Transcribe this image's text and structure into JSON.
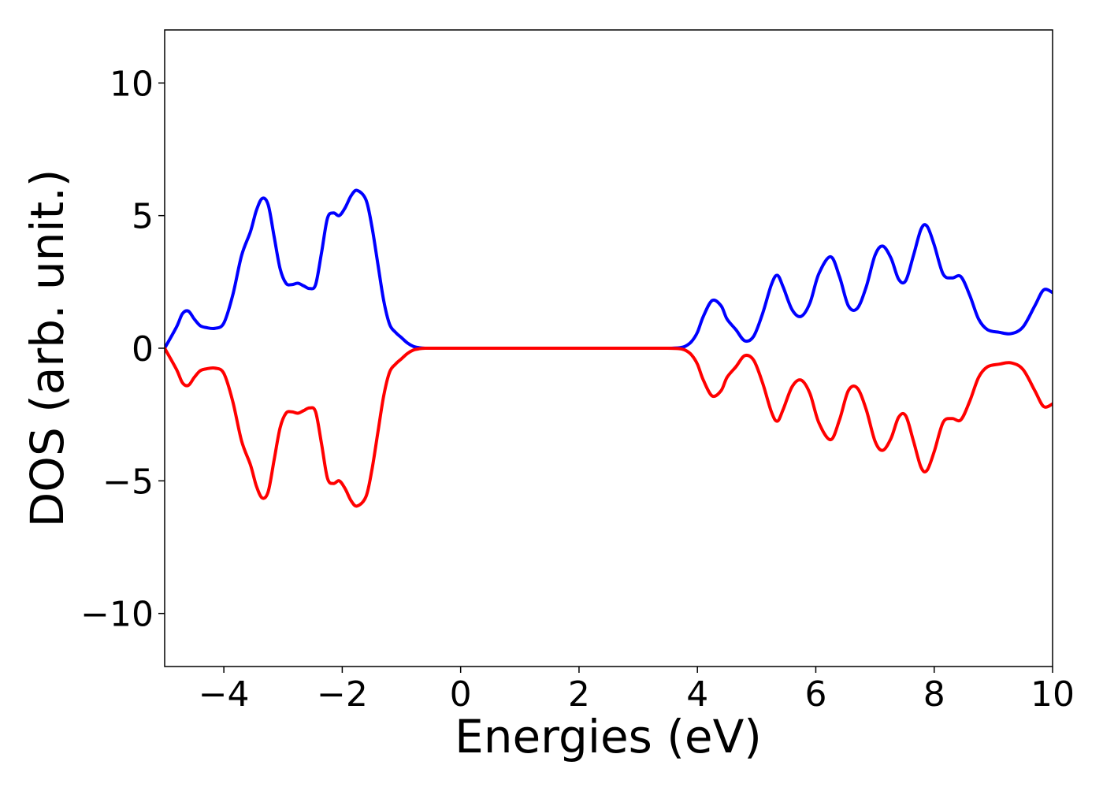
{
  "chart_data": {
    "type": "line",
    "title": "",
    "xlabel": "Energies (eV)",
    "ylabel": "DOS (arb. unit.)",
    "xlim": [
      -5,
      10
    ],
    "ylim": [
      -12,
      12
    ],
    "xticks": [
      -4,
      -2,
      0,
      2,
      4,
      6,
      8,
      10
    ],
    "xtick_labels": [
      "−4",
      "−2",
      "0",
      "2",
      "4",
      "6",
      "8",
      "10"
    ],
    "yticks": [
      -10,
      -5,
      0,
      5,
      10
    ],
    "ytick_labels": [
      "−10",
      "−5",
      "0",
      "5",
      "10"
    ],
    "grid": false,
    "legend": "none",
    "series": [
      {
        "color": "#0000ff",
        "x": [
          -5.0,
          -4.8,
          -4.7,
          -4.6,
          -4.5,
          -4.4,
          -4.3,
          -4.15,
          -4.0,
          -3.85,
          -3.7,
          -3.55,
          -3.45,
          -3.35,
          -3.25,
          -3.15,
          -3.05,
          -2.95,
          -2.85,
          -2.75,
          -2.65,
          -2.55,
          -2.45,
          -2.35,
          -2.25,
          -2.15,
          -2.05,
          -1.95,
          -1.85,
          -1.75,
          -1.6,
          -1.5,
          -1.4,
          -1.3,
          -1.2,
          -1.1,
          -1.0,
          -0.9,
          -0.8,
          -0.7,
          -0.6,
          -0.5,
          -0.3,
          0.0,
          1.0,
          2.0,
          3.0,
          3.5,
          3.7,
          3.8,
          3.9,
          4.0,
          4.1,
          4.25,
          4.4,
          4.5,
          4.65,
          4.8,
          4.95,
          5.1,
          5.25,
          5.35,
          5.45,
          5.6,
          5.75,
          5.9,
          6.05,
          6.25,
          6.4,
          6.55,
          6.7,
          6.85,
          7.0,
          7.13,
          7.27,
          7.4,
          7.52,
          7.65,
          7.78,
          7.88,
          8.0,
          8.15,
          8.3,
          8.45,
          8.6,
          8.75,
          8.9,
          9.1,
          9.3,
          9.5,
          9.7,
          9.85,
          10.0
        ],
        "y": [
          0.0,
          0.8,
          1.3,
          1.4,
          1.1,
          0.85,
          0.78,
          0.75,
          0.95,
          2.0,
          3.5,
          4.4,
          5.2,
          5.65,
          5.4,
          4.2,
          3.0,
          2.45,
          2.4,
          2.45,
          2.35,
          2.25,
          2.4,
          3.6,
          4.9,
          5.1,
          5.0,
          5.3,
          5.75,
          5.95,
          5.6,
          4.6,
          3.2,
          1.8,
          0.9,
          0.6,
          0.4,
          0.2,
          0.07,
          0.02,
          0.0,
          0.0,
          0.0,
          0.0,
          0.0,
          0.0,
          0.0,
          0.0,
          0.02,
          0.08,
          0.25,
          0.6,
          1.2,
          1.8,
          1.6,
          1.1,
          0.7,
          0.28,
          0.45,
          1.3,
          2.4,
          2.75,
          2.3,
          1.45,
          1.2,
          1.7,
          2.8,
          3.45,
          2.7,
          1.6,
          1.5,
          2.3,
          3.5,
          3.85,
          3.4,
          2.6,
          2.55,
          3.5,
          4.5,
          4.6,
          3.9,
          2.8,
          2.65,
          2.7,
          2.0,
          1.1,
          0.7,
          0.6,
          0.55,
          0.8,
          1.6,
          2.2,
          2.1
        ]
      },
      {
        "color": "#ff0000",
        "x": [
          -5.0,
          -4.8,
          -4.7,
          -4.6,
          -4.5,
          -4.4,
          -4.3,
          -4.15,
          -4.0,
          -3.85,
          -3.7,
          -3.55,
          -3.45,
          -3.35,
          -3.25,
          -3.15,
          -3.05,
          -2.95,
          -2.85,
          -2.75,
          -2.65,
          -2.55,
          -2.45,
          -2.35,
          -2.25,
          -2.15,
          -2.05,
          -1.95,
          -1.85,
          -1.75,
          -1.6,
          -1.5,
          -1.4,
          -1.3,
          -1.2,
          -1.1,
          -1.0,
          -0.9,
          -0.8,
          -0.7,
          -0.6,
          -0.5,
          -0.3,
          0.0,
          1.0,
          2.0,
          3.0,
          3.5,
          3.7,
          3.8,
          3.9,
          4.0,
          4.1,
          4.25,
          4.4,
          4.5,
          4.65,
          4.8,
          4.95,
          5.1,
          5.25,
          5.35,
          5.45,
          5.6,
          5.75,
          5.9,
          6.05,
          6.25,
          6.4,
          6.55,
          6.7,
          6.85,
          7.0,
          7.13,
          7.27,
          7.4,
          7.52,
          7.65,
          7.78,
          7.88,
          8.0,
          8.15,
          8.3,
          8.45,
          8.6,
          8.75,
          8.9,
          9.1,
          9.3,
          9.5,
          9.7,
          9.85,
          10.0
        ],
        "y": [
          0.0,
          -0.8,
          -1.3,
          -1.4,
          -1.1,
          -0.85,
          -0.78,
          -0.75,
          -0.95,
          -2.0,
          -3.5,
          -4.4,
          -5.2,
          -5.65,
          -5.4,
          -4.2,
          -3.0,
          -2.45,
          -2.4,
          -2.45,
          -2.35,
          -2.25,
          -2.4,
          -3.6,
          -4.9,
          -5.1,
          -5.0,
          -5.3,
          -5.75,
          -5.95,
          -5.6,
          -4.6,
          -3.2,
          -1.8,
          -0.9,
          -0.6,
          -0.4,
          -0.2,
          -0.07,
          -0.02,
          0.0,
          0.0,
          0.0,
          0.0,
          0.0,
          0.0,
          0.0,
          0.0,
          -0.02,
          -0.08,
          -0.25,
          -0.6,
          -1.2,
          -1.8,
          -1.6,
          -1.1,
          -0.7,
          -0.28,
          -0.45,
          -1.3,
          -2.4,
          -2.75,
          -2.3,
          -1.45,
          -1.2,
          -1.7,
          -2.8,
          -3.45,
          -2.7,
          -1.6,
          -1.5,
          -2.3,
          -3.5,
          -3.85,
          -3.4,
          -2.6,
          -2.55,
          -3.5,
          -4.5,
          -4.6,
          -3.9,
          -2.8,
          -2.65,
          -2.7,
          -2.0,
          -1.1,
          -0.7,
          -0.6,
          -0.55,
          -0.8,
          -1.6,
          -2.2,
          -2.1
        ]
      }
    ]
  }
}
